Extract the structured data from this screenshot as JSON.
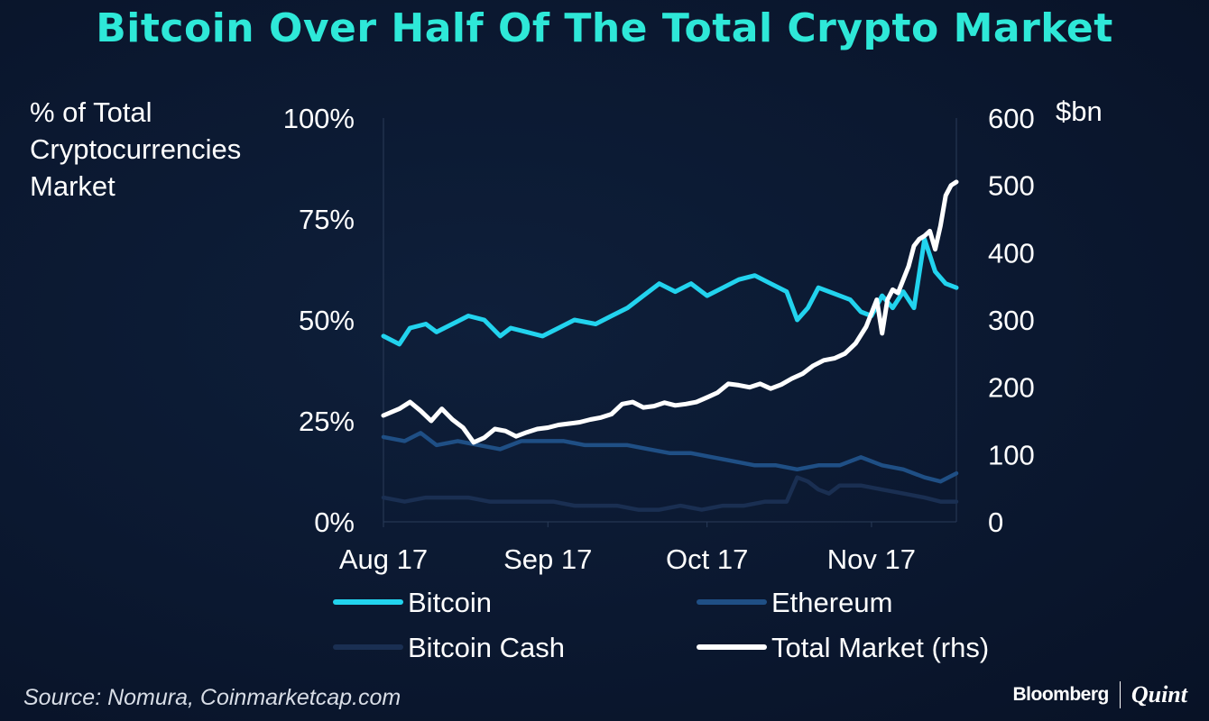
{
  "title": "Bitcoin Over Half Of The Total Crypto Market",
  "source": "Source: Nomura, Coinmarketcap.com",
  "logo": {
    "brand": "Bloomberg",
    "partner": "Quint"
  },
  "colors": {
    "bitcoin": "#22d3ee",
    "ethereum": "#1f4f85",
    "bitcoin_cash": "#1a2f52",
    "total": "#ffffff",
    "title": "#2ee8d8"
  },
  "chart_data": {
    "type": "line",
    "title": "Bitcoin Over Half Of The Total Crypto Market",
    "ylabel_left": "% of Total Cryptocurrencies Market",
    "ylabel_right": "$bn",
    "yleft_ticks": [
      "0%",
      "25%",
      "50%",
      "75%",
      "100%"
    ],
    "yleft_range": [
      0,
      100
    ],
    "yright_ticks": [
      "0",
      "100",
      "200",
      "300",
      "400",
      "500",
      "600"
    ],
    "yright_range": [
      0,
      600
    ],
    "x_ticks": [
      "Aug 17",
      "Sep 17",
      "Oct 17",
      "Nov 17"
    ],
    "x_tick_positions": [
      0,
      31,
      61,
      92
    ],
    "x_range": [
      0,
      108
    ],
    "legend_position": "bottom",
    "series": [
      {
        "name": "Bitcoin",
        "axis": "left",
        "x": [
          0,
          3,
          5,
          8,
          10,
          13,
          16,
          19,
          22,
          24,
          27,
          30,
          33,
          36,
          40,
          43,
          46,
          49,
          52,
          55,
          58,
          61,
          64,
          67,
          70,
          73,
          76,
          78,
          80,
          82,
          84,
          86,
          88,
          90,
          92,
          94,
          96,
          98,
          100,
          102,
          104,
          106,
          108
        ],
        "y": [
          46,
          44,
          48,
          49,
          47,
          49,
          51,
          50,
          46,
          48,
          47,
          46,
          48,
          50,
          49,
          51,
          53,
          56,
          59,
          57,
          59,
          56,
          58,
          60,
          61,
          59,
          57,
          50,
          53,
          58,
          57,
          56,
          55,
          52,
          51,
          56,
          53,
          57,
          53,
          70,
          62,
          59,
          58
        ]
      },
      {
        "name": "Ethereum",
        "axis": "left",
        "x": [
          0,
          4,
          7,
          10,
          14,
          18,
          22,
          26,
          30,
          34,
          38,
          42,
          46,
          50,
          54,
          58,
          62,
          66,
          70,
          74,
          78,
          82,
          86,
          90,
          94,
          98,
          102,
          105,
          108
        ],
        "y": [
          21,
          20,
          22,
          19,
          20,
          19,
          18,
          20,
          20,
          20,
          19,
          19,
          19,
          18,
          17,
          17,
          16,
          15,
          14,
          14,
          13,
          14,
          14,
          16,
          14,
          13,
          11,
          10,
          12
        ]
      },
      {
        "name": "Bitcoin Cash",
        "axis": "left",
        "x": [
          0,
          4,
          8,
          12,
          16,
          20,
          24,
          28,
          32,
          36,
          40,
          44,
          48,
          52,
          56,
          60,
          64,
          68,
          72,
          76,
          78,
          80,
          82,
          84,
          86,
          90,
          94,
          98,
          102,
          105,
          108
        ],
        "y": [
          6,
          5,
          6,
          6,
          6,
          5,
          5,
          5,
          5,
          4,
          4,
          4,
          3,
          3,
          4,
          3,
          4,
          4,
          5,
          5,
          11,
          10,
          8,
          7,
          9,
          9,
          8,
          7,
          6,
          5,
          5
        ]
      },
      {
        "name": "Total Market (rhs)",
        "axis": "right",
        "x": [
          0,
          3,
          5,
          7,
          9,
          11,
          13,
          15,
          17,
          19,
          21,
          23,
          25,
          27,
          29,
          31,
          33,
          35,
          37,
          39,
          41,
          43,
          45,
          47,
          49,
          51,
          53,
          55,
          57,
          59,
          61,
          63,
          65,
          67,
          69,
          71,
          73,
          75,
          77,
          79,
          81,
          83,
          85,
          87,
          89,
          91,
          92,
          93,
          94,
          95,
          96,
          97,
          98,
          99,
          100,
          101,
          102,
          103,
          104,
          105,
          106,
          107,
          108
        ],
        "y": [
          158,
          168,
          178,
          165,
          150,
          168,
          152,
          140,
          118,
          125,
          138,
          135,
          127,
          133,
          138,
          140,
          144,
          146,
          148,
          152,
          155,
          160,
          175,
          178,
          170,
          172,
          177,
          173,
          175,
          178,
          185,
          192,
          205,
          203,
          200,
          205,
          198,
          204,
          213,
          220,
          232,
          240,
          243,
          250,
          265,
          290,
          310,
          330,
          280,
          330,
          345,
          340,
          360,
          380,
          410,
          420,
          425,
          432,
          405,
          440,
          485,
          500,
          505
        ]
      }
    ]
  }
}
